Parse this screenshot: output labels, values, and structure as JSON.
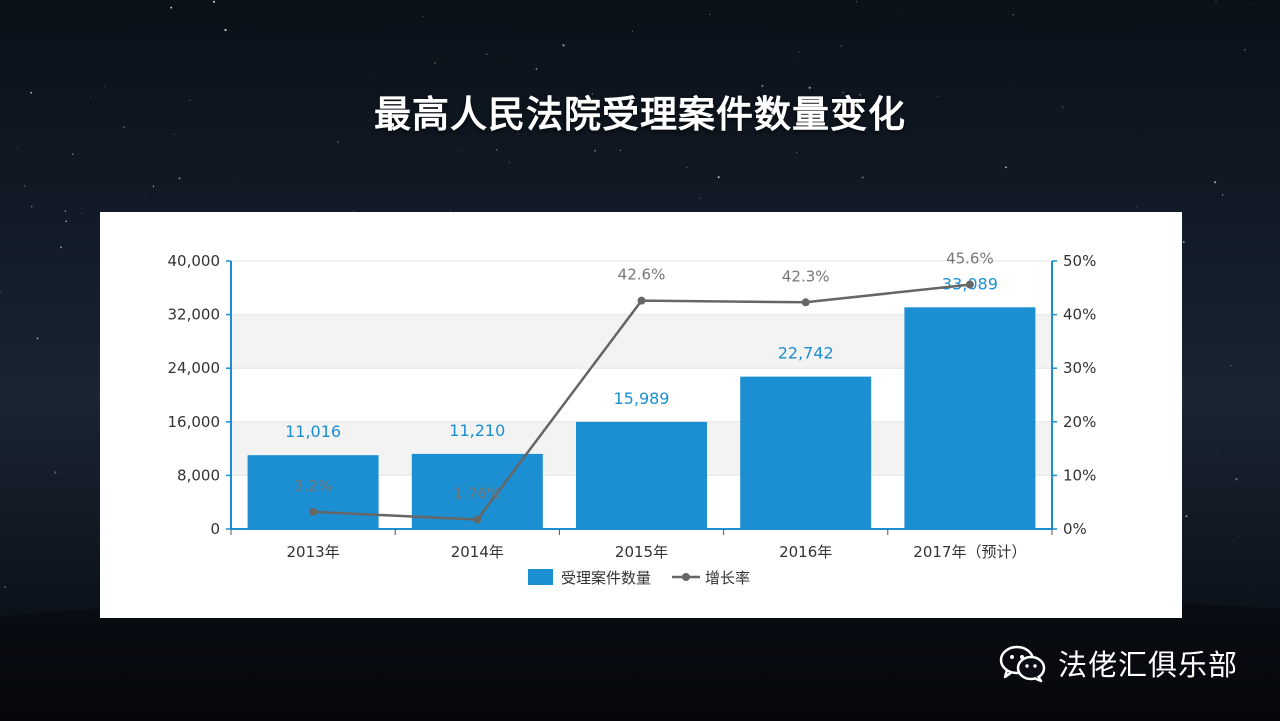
{
  "title": "最高人民法院受理案件数量变化",
  "brand": {
    "name": "法佬汇俱乐部",
    "icon": "wechat-icon"
  },
  "colors": {
    "bar": "#1b8fd2",
    "line": "#666666",
    "axis": "#1b8fd2",
    "bar_label": "#1b8fd2",
    "line_label": "#777777"
  },
  "chart_data": {
    "type": "bar",
    "categories": [
      "2013年",
      "2014年",
      "2015年",
      "2016年",
      "2017年（预计）"
    ],
    "series": [
      {
        "name": "受理案件数量",
        "type": "bar",
        "axis": "left",
        "values": [
          11016,
          11210,
          15989,
          22742,
          33089
        ],
        "labels": [
          "11,016",
          "11,210",
          "15,989",
          "22,742",
          "33,089"
        ]
      },
      {
        "name": "增长率",
        "type": "line",
        "axis": "right",
        "values": [
          3.2,
          1.76,
          42.6,
          42.3,
          45.6
        ],
        "labels": [
          "3.2%",
          "1.76%",
          "42.6%",
          "42.3%",
          "45.6%"
        ]
      }
    ],
    "y_left": {
      "min": 0,
      "max": 40000,
      "ticks": [
        "0",
        "8,000",
        "16,000",
        "24,000",
        "32,000",
        "40,000"
      ]
    },
    "y_right": {
      "min": 0,
      "max": 50,
      "ticks": [
        "0%",
        "10%",
        "20%",
        "30%",
        "40%",
        "50%"
      ]
    },
    "grid": true,
    "legend": "bottom-center"
  }
}
